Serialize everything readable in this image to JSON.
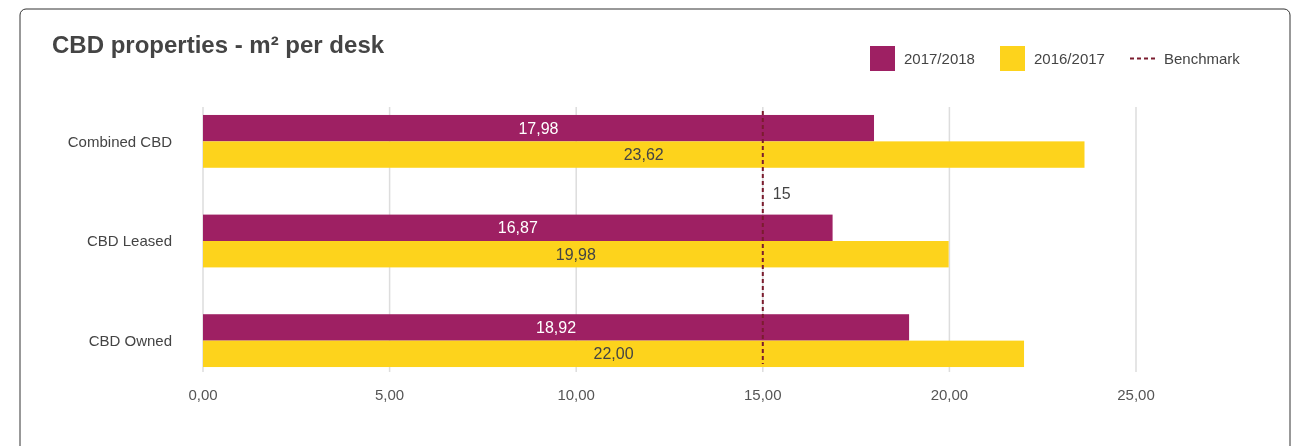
{
  "chart_data": {
    "type": "bar",
    "orientation": "horizontal",
    "title": "CBD properties - m² per desk",
    "categories": [
      "Combined CBD",
      "CBD Leased",
      "CBD Owned"
    ],
    "series": [
      {
        "name": "2017/2018",
        "color": "#9e2063",
        "values": [
          17.98,
          16.87,
          18.92
        ],
        "value_labels": [
          "17,98",
          "16,87",
          "18,92"
        ]
      },
      {
        "name": "2016/2017",
        "color": "#fdd31c",
        "values": [
          23.62,
          19.98,
          22.0
        ],
        "value_labels": [
          "23,62",
          "19,98",
          "22,00"
        ]
      }
    ],
    "xlim": [
      0,
      25
    ],
    "xticks": [
      {
        "value": 0,
        "label": "0,00"
      },
      {
        "value": 5,
        "label": "5,00"
      },
      {
        "value": 10,
        "label": "10,00"
      },
      {
        "value": 15,
        "label": "15,00"
      },
      {
        "value": 20,
        "label": "20,00"
      },
      {
        "value": 25,
        "label": "25,00"
      }
    ],
    "ref_lines": [
      {
        "axis": "x",
        "value": 15,
        "label": "Benchmark",
        "color": "#7b1c2e",
        "line_style": "dashed"
      }
    ],
    "annotations": [
      {
        "text": "15",
        "x": 15
      }
    ],
    "grid": "x",
    "legend": "top right"
  }
}
